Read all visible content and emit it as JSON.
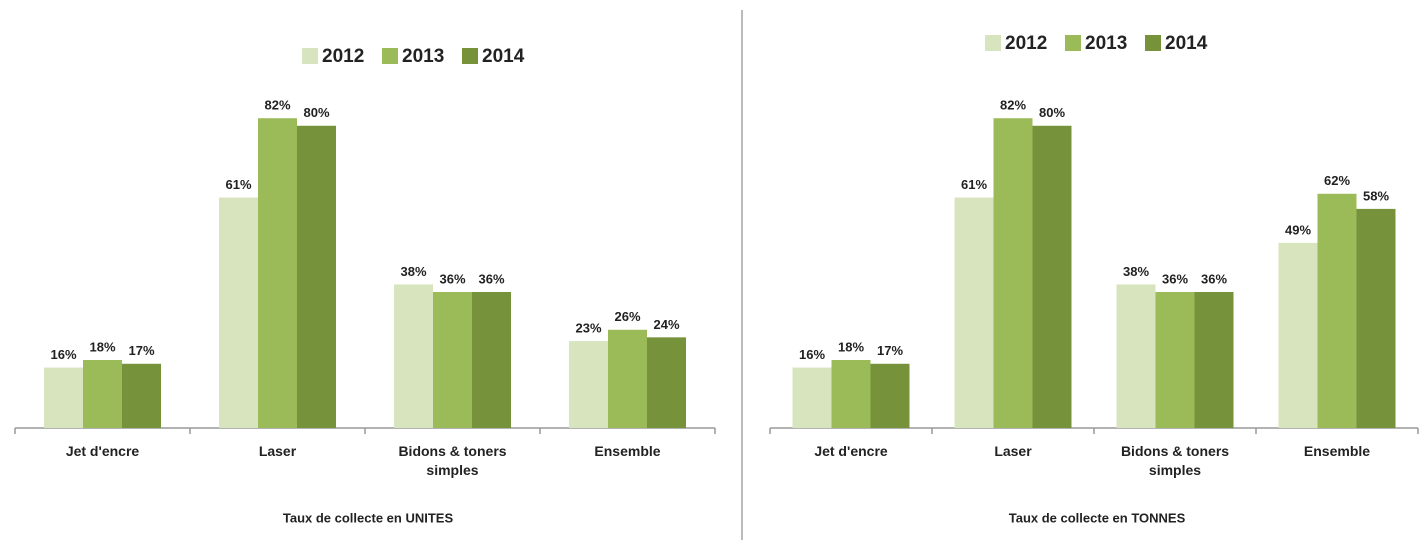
{
  "chart_data": [
    {
      "type": "bar",
      "x_label": "Taux de collecte en UNITES",
      "categories": [
        "Jet d'encre",
        "Laser",
        "Bidons & toners simples",
        "Ensemble"
      ],
      "ylim": [
        0,
        90
      ],
      "series": [
        {
          "name": "2012",
          "color": "#d7e4bd",
          "values": [
            16,
            61,
            38,
            23
          ],
          "value_labels": [
            "16%",
            "61%",
            "38%",
            "23%"
          ]
        },
        {
          "name": "2013",
          "color": "#9bbb59",
          "values": [
            18,
            82,
            36,
            26
          ],
          "value_labels": [
            "18%",
            "82%",
            "36%",
            "26%"
          ]
        },
        {
          "name": "2014",
          "color": "#76933c",
          "values": [
            17,
            80,
            36,
            24
          ],
          "value_labels": [
            "17%",
            "80%",
            "36%",
            "24%"
          ]
        }
      ]
    },
    {
      "type": "bar",
      "x_label": "Taux de collecte en TONNES",
      "categories": [
        "Jet d'encre",
        "Laser",
        "Bidons & toners simples",
        "Ensemble"
      ],
      "ylim": [
        0,
        90
      ],
      "series": [
        {
          "name": "2012",
          "color": "#d7e4bd",
          "values": [
            16,
            61,
            38,
            49
          ],
          "value_labels": [
            "16%",
            "61%",
            "38%",
            "49%"
          ]
        },
        {
          "name": "2013",
          "color": "#9bbb59",
          "values": [
            18,
            82,
            36,
            62
          ],
          "value_labels": [
            "18%",
            "82%",
            "36%",
            "62%"
          ]
        },
        {
          "name": "2014",
          "color": "#76933c",
          "values": [
            17,
            80,
            36,
            58
          ],
          "value_labels": [
            "17%",
            "80%",
            "36%",
            "58%"
          ]
        }
      ]
    }
  ]
}
